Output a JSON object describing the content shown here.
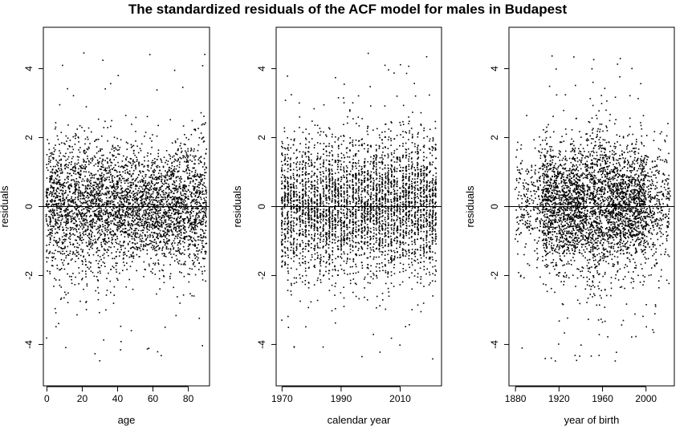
{
  "title": "The standardized residuals of the ACF model for males in Budapest",
  "chart_data": [
    {
      "type": "scatter",
      "name": "age",
      "xlabel": "age",
      "ylabel": "residuals",
      "xlim": [
        -2,
        92
      ],
      "ylim": [
        -5.2,
        5.2
      ],
      "xticks": [
        0,
        20,
        40,
        60,
        80
      ],
      "yticks": [
        -4,
        -2,
        0,
        2,
        4
      ],
      "hline": 0,
      "grid": false,
      "x_values": "integers 0-90 (ages)",
      "residual_spread": "mostly between -2 and 2, outliers to about -4.8 and 4.5",
      "approx_points": 4000
    },
    {
      "type": "scatter",
      "name": "calendar year",
      "xlabel": "calendar year",
      "ylabel": "residuals",
      "xlim": [
        1968,
        2024
      ],
      "ylim": [
        -5.2,
        5.2
      ],
      "xticks": [
        1970,
        1990,
        2010
      ],
      "yticks": [
        -4,
        -2,
        0,
        2,
        4
      ],
      "hline": 0,
      "grid": false,
      "x_values": "integers 1970-2022 (calendar years)",
      "residual_spread": "mostly between -2.5 and 2.5, outliers to about -4.8 and 4.5",
      "approx_points": 4000
    },
    {
      "type": "scatter",
      "name": "year of birth",
      "xlabel": "year of birth",
      "ylabel": "residuals",
      "xlim": [
        1874,
        2026
      ],
      "ylim": [
        -5.2,
        5.2
      ],
      "xticks": [
        1880,
        1920,
        1960,
        2000
      ],
      "yticks": [
        -4,
        -2,
        0,
        2,
        4
      ],
      "hline": 0,
      "grid": false,
      "x_values": "integers 1880-2022 (cohorts); density highest 1900-2000",
      "residual_spread": "mostly between -2 and 2, wider around 1950-1960, outliers to about -4.8 and 4.5",
      "approx_points": 4000
    }
  ]
}
